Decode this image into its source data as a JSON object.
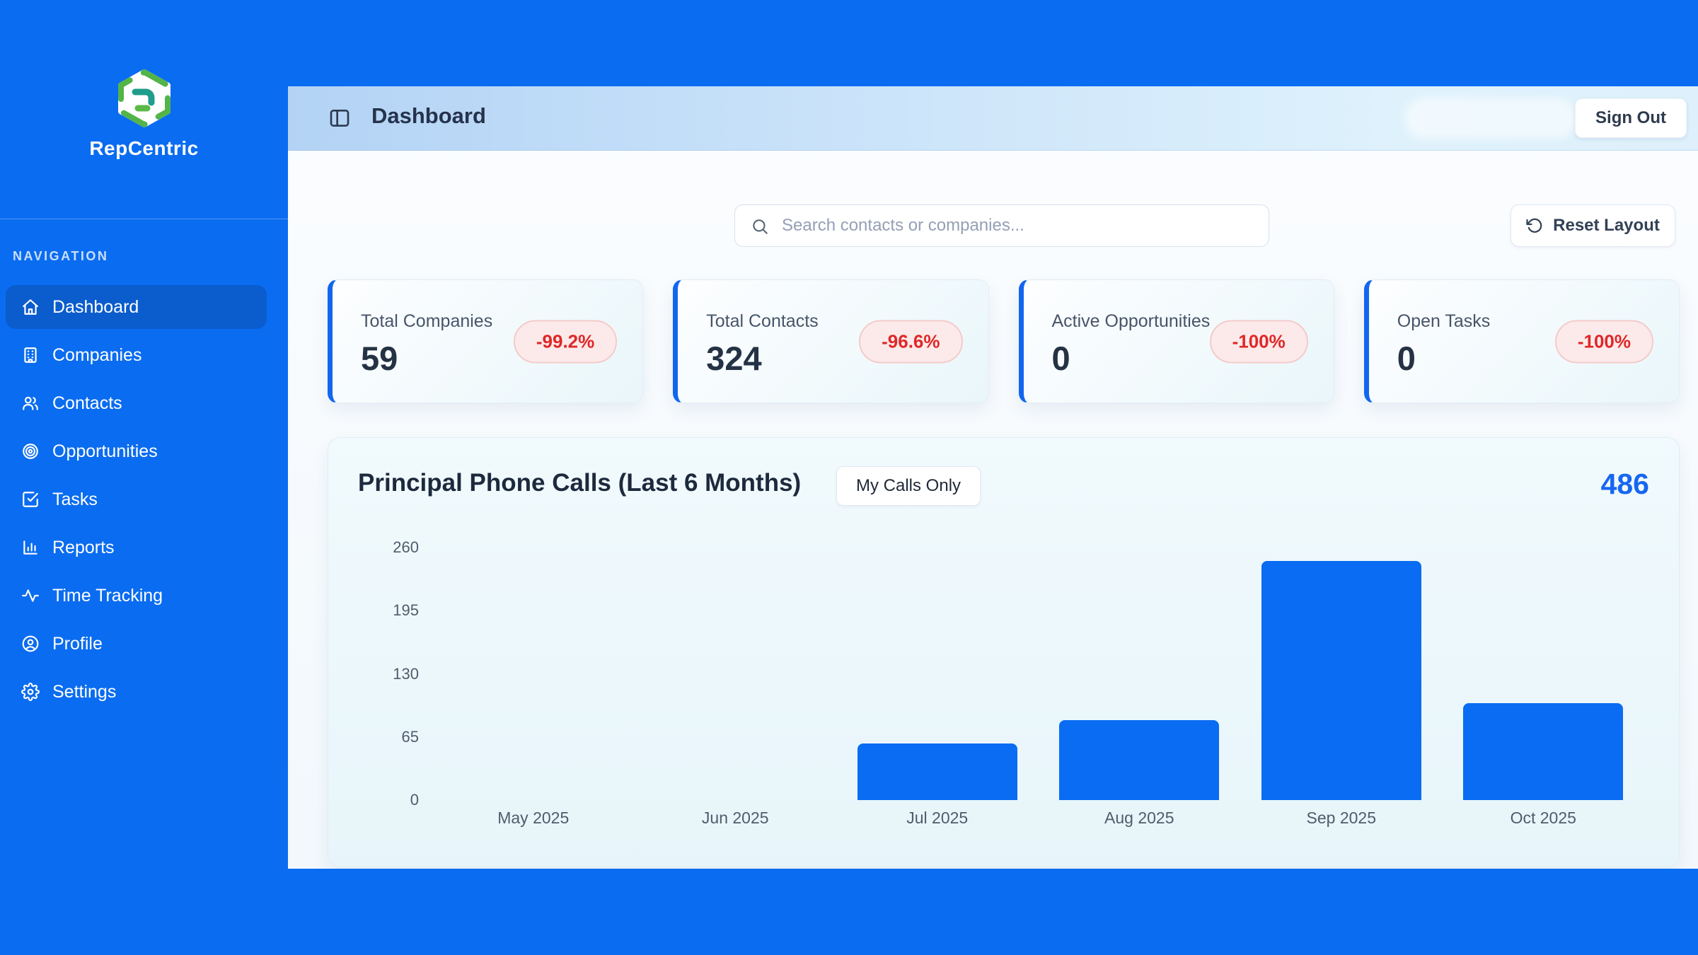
{
  "app": {
    "brand": "RepCentric"
  },
  "sidebar": {
    "section_label": "NAVIGATION",
    "items": [
      {
        "label": "Dashboard",
        "icon": "home",
        "active": true
      },
      {
        "label": "Companies",
        "icon": "building",
        "active": false
      },
      {
        "label": "Contacts",
        "icon": "users",
        "active": false
      },
      {
        "label": "Opportunities",
        "icon": "target",
        "active": false
      },
      {
        "label": "Tasks",
        "icon": "check-square",
        "active": false
      },
      {
        "label": "Reports",
        "icon": "bar-chart",
        "active": false
      },
      {
        "label": "Time Tracking",
        "icon": "activity",
        "active": false
      },
      {
        "label": "Profile",
        "icon": "user-circle",
        "active": false
      },
      {
        "label": "Settings",
        "icon": "gear",
        "active": false
      }
    ]
  },
  "header": {
    "title": "Dashboard",
    "sign_out_label": "Sign Out"
  },
  "toolbar": {
    "search_placeholder": "Search contacts or companies...",
    "reset_label": "Reset Layout"
  },
  "stats": [
    {
      "label": "Total Companies",
      "value": "59",
      "delta": "-99.2%"
    },
    {
      "label": "Total Contacts",
      "value": "324",
      "delta": "-96.6%"
    },
    {
      "label": "Active Opportunities",
      "value": "0",
      "delta": "-100%"
    },
    {
      "label": "Open Tasks",
      "value": "0",
      "delta": "-100%"
    }
  ],
  "chart_card": {
    "title": "Principal Phone Calls (Last 6 Months)",
    "toggle_label": "My Calls Only",
    "total": "486"
  },
  "chart_data": {
    "type": "bar",
    "title": "Principal Phone Calls (Last 6 Months)",
    "categories": [
      "May 2025",
      "Jun 2025",
      "Jul 2025",
      "Aug 2025",
      "Sep 2025",
      "Oct 2025"
    ],
    "values": [
      0,
      0,
      58,
      82,
      246,
      100
    ],
    "total": 486,
    "xlabel": "",
    "ylabel": "",
    "ylim": [
      0,
      260
    ],
    "yticks": [
      0,
      65,
      130,
      195,
      260
    ],
    "grid": false,
    "legend": false,
    "bar_color": "#0a6cf2"
  },
  "colors": {
    "page_blue": "#0a6cf0",
    "active_nav": "#0b5ccd",
    "accent_border": "#1266ee",
    "bar_blue": "#0a6cf2",
    "badge_red_text": "#df2727",
    "badge_red_bg": "#fceaea",
    "total_blue": "#1766f2"
  }
}
